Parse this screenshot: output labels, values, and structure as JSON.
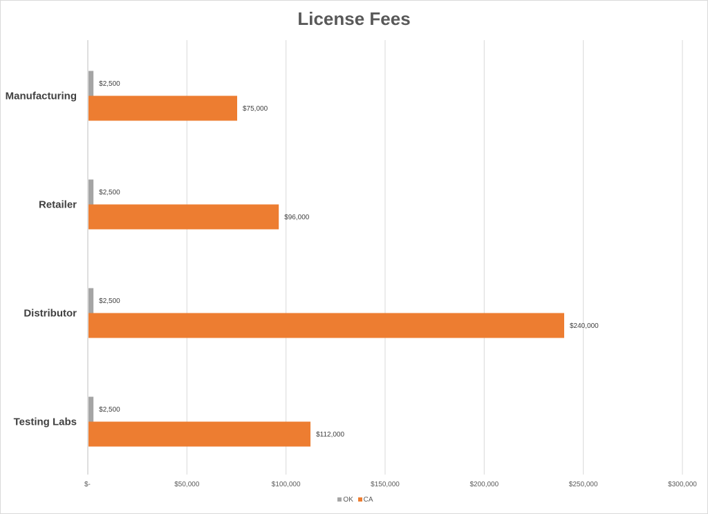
{
  "chart_data": {
    "type": "bar",
    "orientation": "horizontal",
    "title": "License Fees",
    "categories": [
      "Manufacturing",
      "Retailer",
      "Distributor",
      "Testing Labs"
    ],
    "series": [
      {
        "name": "OK",
        "color": "#a5a5a5",
        "values": [
          2500,
          2500,
          2500,
          2500
        ],
        "labels": [
          "$2,500",
          "$2,500",
          "$2,500",
          "$2,500"
        ]
      },
      {
        "name": "CA",
        "color": "#ed7d31",
        "values": [
          75000,
          96000,
          240000,
          112000
        ],
        "labels": [
          "$75,000",
          "$96,000",
          "$240,000",
          "$112,000"
        ]
      }
    ],
    "xlim": [
      0,
      300000
    ],
    "xticks": [
      0,
      50000,
      100000,
      150000,
      200000,
      250000,
      300000
    ],
    "xtick_labels": [
      "$-",
      "$50,000",
      "$100,000",
      "$150,000",
      "$200,000",
      "$250,000",
      "$300,000"
    ],
    "grid": true,
    "legend_position": "bottom"
  }
}
